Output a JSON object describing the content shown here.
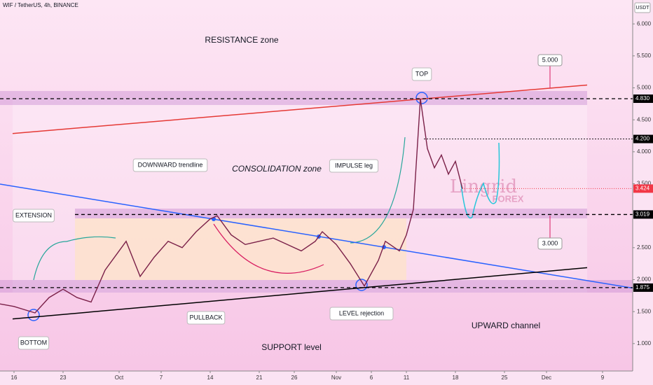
{
  "chart_data": {
    "type": "line",
    "title": "WIF / TetherUS, 4h, BINANCE",
    "y_unit": "USDT",
    "watermark": [
      "Lingrid",
      "FOREX"
    ],
    "color": "#7a2048",
    "x": [
      -2,
      0,
      3,
      5,
      7,
      9,
      11,
      13,
      15,
      16,
      18,
      20,
      22,
      24,
      26,
      28,
      29,
      31,
      33,
      35,
      37,
      39,
      41,
      43,
      44,
      46,
      48,
      50,
      52,
      53,
      55,
      56,
      57,
      58,
      59,
      60,
      61,
      62,
      63,
      64
    ],
    "values": [
      1.62,
      1.58,
      1.48,
      1.72,
      1.85,
      1.72,
      1.65,
      2.15,
      2.45,
      2.6,
      2.05,
      2.35,
      2.6,
      2.5,
      2.75,
      2.95,
      3.0,
      2.7,
      2.55,
      2.6,
      2.65,
      2.55,
      2.45,
      2.6,
      2.75,
      2.55,
      2.25,
      1.9,
      2.3,
      2.6,
      2.45,
      2.7,
      3.1,
      4.83,
      4.05,
      3.75,
      3.95,
      3.65,
      3.85,
      3.424
    ],
    "xlim": [
      -2,
      88.3
    ],
    "ylim": [
      0.571,
      6.374
    ],
    "xticks": [
      {
        "value": 0,
        "label": "16"
      },
      {
        "value": 7,
        "label": "23"
      },
      {
        "value": 15,
        "label": "Oct"
      },
      {
        "value": 21,
        "label": "7"
      },
      {
        "value": 28,
        "label": "14"
      },
      {
        "value": 35,
        "label": "21"
      },
      {
        "value": 40,
        "label": "26"
      },
      {
        "value": 46,
        "label": "Nov"
      },
      {
        "value": 51,
        "label": "6"
      },
      {
        "value": 56,
        "label": "11"
      },
      {
        "value": 63,
        "label": "18"
      },
      {
        "value": 70,
        "label": "25"
      },
      {
        "value": 76,
        "label": "Dec"
      },
      {
        "value": 84,
        "label": "9"
      }
    ],
    "yticks": [
      {
        "value": 6,
        "label": "6.000"
      },
      {
        "value": 5.5,
        "label": "5.500"
      },
      {
        "value": 5,
        "label": "5.000"
      },
      {
        "value": 4.5,
        "label": "4.500"
      },
      {
        "value": 4,
        "label": "4.000"
      },
      {
        "value": 3.5,
        "label": "3.500"
      },
      {
        "value": 2.5,
        "label": "2.500"
      },
      {
        "value": 2,
        "label": "2.000"
      },
      {
        "value": 1.5,
        "label": "1.500"
      },
      {
        "value": 1,
        "label": "1.000"
      }
    ],
    "levels": [
      {
        "value": 4.83,
        "label": "4.830"
      },
      {
        "value": 4.2,
        "label": "4.200"
      },
      {
        "value": 3.019,
        "label": "3.019"
      },
      {
        "value": 1.875,
        "label": "1.875"
      }
    ],
    "last_price": {
      "value": 3.424,
      "label": "3.424"
    },
    "trendlines": [
      {
        "name": "resistance",
        "color": "#e53935",
        "start": [
          -0.2,
          4.286
        ],
        "end": [
          81.8,
          5.044
        ]
      },
      {
        "name": "downward",
        "color": "#2962ff",
        "start": [
          -2,
          3.495
        ],
        "end": [
          88.3,
          1.868
        ]
      },
      {
        "name": "upward",
        "color": "#000000",
        "start": [
          -0.2,
          1.385
        ],
        "end": [
          81.8,
          2.187
        ]
      }
    ],
    "callouts": [
      {
        "value": 5,
        "label": "5.000"
      },
      {
        "value": 3,
        "label": "3.000"
      }
    ],
    "annotations": [
      "RESISTANCE zone",
      "CONSOLIDATION zone",
      "DOWNWARD trendline",
      "EXTENSION",
      "IMPULSE leg",
      "TOP",
      "PULLBACK",
      "LEVEL rejection",
      "BOTTOM",
      "SUPPORT level",
      "UPWARD channel"
    ]
  }
}
